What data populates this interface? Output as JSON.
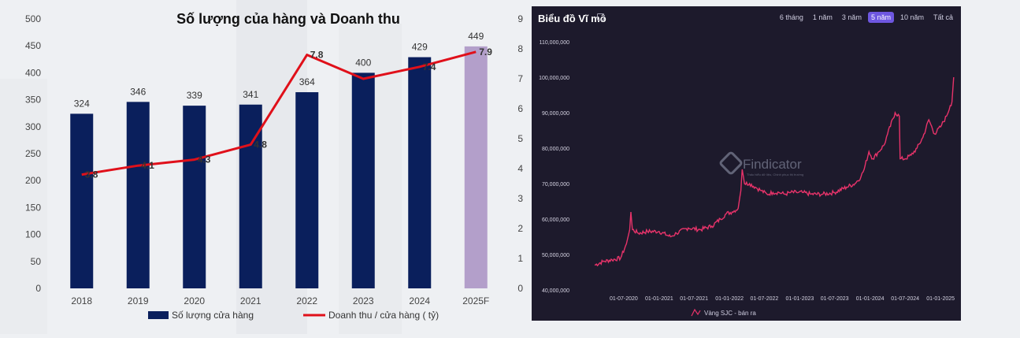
{
  "chart_data": [
    {
      "type": "bar",
      "title": "Số lượng của hàng và Doanh thu",
      "categories": [
        "2018",
        "2019",
        "2020",
        "2021",
        "2022",
        "2023",
        "2024",
        "2025F"
      ],
      "series": [
        {
          "name": "Số lượng cửa hàng",
          "type": "bar",
          "axis": "left",
          "values": [
            324,
            346,
            339,
            341,
            364,
            400,
            429,
            449
          ],
          "labels": [
            "324",
            "346",
            "339",
            "341",
            "364",
            "400",
            "429",
            "449"
          ],
          "color": "#0a1f5c",
          "forecast_color": "#b39fca"
        },
        {
          "name": "Doanh thu / cửa hàng ( tỷ)",
          "type": "line",
          "axis": "right",
          "values": [
            3.8,
            4.1,
            4.3,
            4.8,
            7.8,
            7.0,
            7.4,
            7.9
          ],
          "labels": [
            "3.8",
            "4.1",
            "4.3",
            "4.8",
            "7.8",
            "",
            "7.4",
            "7.9"
          ],
          "color": "#e0101a"
        }
      ],
      "y_left": {
        "ylim": [
          0,
          500
        ],
        "ticks": [
          "0",
          "50",
          "100",
          "150",
          "200",
          "250",
          "300",
          "350",
          "400",
          "450",
          "500"
        ]
      },
      "y_right": {
        "ylim": [
          0,
          9
        ],
        "ticks": [
          "0",
          "1",
          "2",
          "3",
          "4",
          "5",
          "6",
          "7",
          "8",
          "9"
        ]
      },
      "legend_position": "bottom",
      "grid": false
    },
    {
      "type": "line",
      "title": "Biểu đồ Vĩ mô",
      "watermark": "Findicator",
      "watermark_sub": "Thấu hiểu dữ liệu, Chinh phục thị trường",
      "x_ticks": [
        "01-07-2020",
        "01-01-2021",
        "01-07-2021",
        "01-01-2022",
        "01-07-2022",
        "01-01-2023",
        "01-07-2023",
        "01-01-2024",
        "01-07-2024",
        "01-01-2025"
      ],
      "y_ticks": [
        "40,000,000",
        "50,000,000",
        "60,000,000",
        "70,000,000",
        "80,000,000",
        "90,000,000",
        "100,000,000",
        "110,000,000"
      ],
      "ylim": [
        40000000,
        112000000
      ],
      "series": [
        {
          "name": "Vàng SJC - bán ra",
          "color": "#e8336a",
          "x": [
            "2020-02-01",
            "2020-03-15",
            "2020-05-01",
            "2020-06-15",
            "2020-07-15",
            "2020-08-01",
            "2020-08-07",
            "2020-08-15",
            "2020-09-15",
            "2020-11-01",
            "2021-01-01",
            "2021-03-01",
            "2021-04-01",
            "2021-06-01",
            "2021-08-01",
            "2021-10-01",
            "2021-11-15",
            "2021-12-15",
            "2022-01-15",
            "2022-02-15",
            "2022-03-01",
            "2022-03-08",
            "2022-03-20",
            "2022-04-15",
            "2022-05-15",
            "2022-06-15",
            "2022-07-15",
            "2022-08-15",
            "2022-09-15",
            "2022-10-15",
            "2022-11-15",
            "2022-12-15",
            "2023-01-15",
            "2023-03-01",
            "2023-05-01",
            "2023-07-01",
            "2023-09-01",
            "2023-10-15",
            "2023-11-15",
            "2023-12-01",
            "2023-12-26",
            "2024-01-15",
            "2024-02-15",
            "2024-03-15",
            "2024-04-01",
            "2024-05-10",
            "2024-06-01",
            "2024-06-05",
            "2024-07-01",
            "2024-08-01",
            "2024-09-01",
            "2024-10-01",
            "2024-11-01",
            "2024-12-01",
            "2025-01-01",
            "2025-02-01",
            "2025-02-20",
            "2025-03-01",
            "2025-03-10"
          ],
          "y": [
            47000000,
            48000000,
            48500000,
            49000000,
            53000000,
            57000000,
            62000000,
            57000000,
            56000000,
            56500000,
            56500000,
            55000000,
            56000000,
            57500000,
            57000000,
            58000000,
            60000000,
            61500000,
            62000000,
            63000000,
            68000000,
            74000000,
            70000000,
            70000000,
            69000000,
            68000000,
            67000000,
            67500000,
            67500000,
            67000000,
            67500000,
            67500000,
            67500000,
            67000000,
            67000000,
            67500000,
            69000000,
            70000000,
            72000000,
            74000000,
            79000000,
            77000000,
            79000000,
            81000000,
            84000000,
            90000000,
            89000000,
            77000000,
            77000000,
            78000000,
            80000000,
            83000000,
            88000000,
            84000000,
            86000000,
            89000000,
            92000000,
            93000000,
            100000000
          ]
        }
      ]
    }
  ],
  "ui": {
    "panel_title": "Biểu đồ Vĩ mô",
    "range_tabs": [
      {
        "label": "6 tháng",
        "active": false
      },
      {
        "label": "1 năm",
        "active": false
      },
      {
        "label": "3 năm",
        "active": false
      },
      {
        "label": "5 năm",
        "active": true
      },
      {
        "label": "10 năm",
        "active": false
      },
      {
        "label": "Tất cả",
        "active": false
      }
    ]
  },
  "icons": {
    "edit": "edit-icon",
    "logo": "findicator-logo-icon"
  }
}
